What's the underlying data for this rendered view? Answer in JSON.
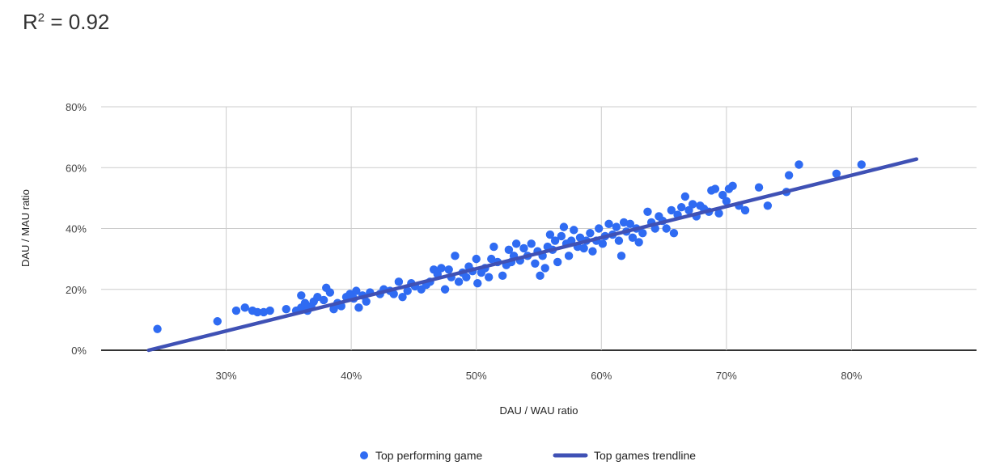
{
  "r2": {
    "prefix": "R",
    "exponent": "2",
    "value": " = 0.92"
  },
  "chart_data": {
    "type": "scatter",
    "xlabel": "DAU / WAU ratio",
    "ylabel": "DAU / MAU ratio",
    "xlim": [
      20,
      90
    ],
    "ylim": [
      0,
      80
    ],
    "x_ticks": [
      30,
      40,
      50,
      60,
      70,
      80
    ],
    "y_ticks": [
      0,
      20,
      40,
      60,
      80
    ],
    "x_tick_labels": [
      "30%",
      "40%",
      "50%",
      "60%",
      "70%",
      "80%"
    ],
    "y_tick_labels": [
      "0%",
      "20%",
      "40%",
      "60%",
      "80%"
    ],
    "grid": true,
    "legend_position": "bottom",
    "colors": {
      "points": "#2f6bf2",
      "trendline": "#3f51b5",
      "grid": "#cccccc",
      "axis": "#333333"
    },
    "series": [
      {
        "name": "Top performing game",
        "kind": "points",
        "points": [
          [
            24.5,
            7
          ],
          [
            29.3,
            9.5
          ],
          [
            30.8,
            13
          ],
          [
            31.5,
            14
          ],
          [
            32.1,
            13
          ],
          [
            32.5,
            12.5
          ],
          [
            33,
            12.5
          ],
          [
            33.5,
            13
          ],
          [
            34.8,
            13.5
          ],
          [
            35.6,
            13
          ],
          [
            36,
            14
          ],
          [
            36,
            18
          ],
          [
            36.3,
            15.5
          ],
          [
            36.5,
            13
          ],
          [
            36.8,
            14.5
          ],
          [
            37,
            16
          ],
          [
            37.3,
            17.5
          ],
          [
            37.8,
            16.5
          ],
          [
            38,
            20.5
          ],
          [
            38.3,
            19
          ],
          [
            38.6,
            13.5
          ],
          [
            38.9,
            15.5
          ],
          [
            39.2,
            14.5
          ],
          [
            39.6,
            17.5
          ],
          [
            39.9,
            18.5
          ],
          [
            40.2,
            17
          ],
          [
            40.4,
            19.5
          ],
          [
            40.6,
            14
          ],
          [
            40.9,
            18
          ],
          [
            41.2,
            16
          ],
          [
            41.5,
            19
          ],
          [
            42.3,
            18.5
          ],
          [
            42.6,
            20
          ],
          [
            43.1,
            19.5
          ],
          [
            43.4,
            18.5
          ],
          [
            43.8,
            22.5
          ],
          [
            44.1,
            17.5
          ],
          [
            44.5,
            19.5
          ],
          [
            44.8,
            22
          ],
          [
            45.1,
            21
          ],
          [
            45.6,
            20
          ],
          [
            46,
            21.5
          ],
          [
            46.3,
            22.5
          ],
          [
            46.6,
            26.5
          ],
          [
            46.9,
            25
          ],
          [
            47.2,
            27
          ],
          [
            47.5,
            20
          ],
          [
            47.8,
            26.5
          ],
          [
            48,
            24
          ],
          [
            48.3,
            31
          ],
          [
            48.6,
            22.5
          ],
          [
            48.9,
            25.5
          ],
          [
            49.2,
            24
          ],
          [
            49.4,
            27.5
          ],
          [
            49.7,
            26
          ],
          [
            50,
            30
          ],
          [
            50.1,
            22
          ],
          [
            50.4,
            25.5
          ],
          [
            50.7,
            27
          ],
          [
            51,
            24
          ],
          [
            51.2,
            30
          ],
          [
            51.4,
            34
          ],
          [
            51.7,
            29
          ],
          [
            52.1,
            24.5
          ],
          [
            52.4,
            28
          ],
          [
            52.6,
            33
          ],
          [
            52.8,
            29
          ],
          [
            53,
            31
          ],
          [
            53.2,
            35
          ],
          [
            53.5,
            29.5
          ],
          [
            53.8,
            33.5
          ],
          [
            54.1,
            31
          ],
          [
            54.4,
            35
          ],
          [
            54.7,
            28.5
          ],
          [
            54.9,
            32.5
          ],
          [
            55.1,
            24.5
          ],
          [
            55.3,
            31
          ],
          [
            55.5,
            27
          ],
          [
            55.7,
            34
          ],
          [
            55.9,
            38
          ],
          [
            56.1,
            33
          ],
          [
            56.3,
            36
          ],
          [
            56.5,
            29
          ],
          [
            56.8,
            37.5
          ],
          [
            57,
            40.5
          ],
          [
            57.2,
            35
          ],
          [
            57.4,
            31
          ],
          [
            57.6,
            36
          ],
          [
            57.8,
            39.5
          ],
          [
            58.1,
            34
          ],
          [
            58.3,
            37
          ],
          [
            58.6,
            33.5
          ],
          [
            58.8,
            36
          ],
          [
            59.1,
            38.5
          ],
          [
            59.3,
            32.5
          ],
          [
            59.6,
            36
          ],
          [
            59.8,
            40
          ],
          [
            60.1,
            35
          ],
          [
            60.3,
            37.5
          ],
          [
            60.6,
            41.5
          ],
          [
            60.9,
            38
          ],
          [
            61.2,
            40.5
          ],
          [
            61.4,
            36
          ],
          [
            61.6,
            31
          ],
          [
            61.8,
            42
          ],
          [
            62,
            39
          ],
          [
            62.3,
            41.5
          ],
          [
            62.5,
            37
          ],
          [
            62.8,
            40
          ],
          [
            63,
            35.5
          ],
          [
            63.3,
            38.5
          ],
          [
            63.7,
            45.5
          ],
          [
            64,
            42
          ],
          [
            64.3,
            40
          ],
          [
            64.6,
            44
          ],
          [
            64.9,
            42.5
          ],
          [
            65.2,
            40
          ],
          [
            65.6,
            46
          ],
          [
            65.8,
            38.5
          ],
          [
            66.1,
            44.5
          ],
          [
            66.4,
            47
          ],
          [
            66.7,
            50.5
          ],
          [
            67,
            46
          ],
          [
            67.3,
            48
          ],
          [
            67.6,
            44
          ],
          [
            67.9,
            47.5
          ],
          [
            68.2,
            46.5
          ],
          [
            68.6,
            45.5
          ],
          [
            68.8,
            52.5
          ],
          [
            69.1,
            53
          ],
          [
            69.4,
            45
          ],
          [
            69.7,
            51
          ],
          [
            70,
            49
          ],
          [
            70.2,
            53
          ],
          [
            70.5,
            54
          ],
          [
            71,
            47.5
          ],
          [
            71.5,
            46
          ],
          [
            72.6,
            53.5
          ],
          [
            73.3,
            47.5
          ],
          [
            74.8,
            52
          ],
          [
            75,
            57.5
          ],
          [
            75.8,
            61
          ],
          [
            78.8,
            58
          ],
          [
            80.8,
            61
          ]
        ]
      },
      {
        "name": "Top games trendline",
        "kind": "line",
        "points": [
          [
            23.8,
            0
          ],
          [
            85.2,
            62.8
          ]
        ]
      }
    ]
  }
}
